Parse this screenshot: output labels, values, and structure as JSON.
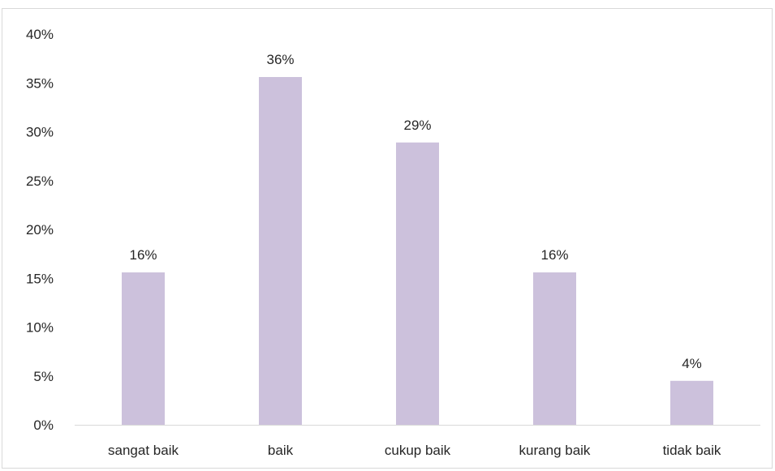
{
  "chart_data": {
    "type": "bar",
    "categories": [
      "sangat baik",
      "baik",
      "cukup baik",
      "kurang baik",
      "tidak baik"
    ],
    "values": [
      16,
      36,
      29,
      16,
      4
    ],
    "value_labels": [
      "16%",
      "36%",
      "29%",
      "16%",
      "4%"
    ],
    "plotted_values": [
      15.6,
      35.6,
      28.9,
      15.6,
      4.5
    ],
    "title": "",
    "xlabel": "",
    "ylabel": "",
    "ylim": [
      0,
      40
    ],
    "yticks": [
      0,
      5,
      10,
      15,
      20,
      25,
      30,
      35,
      40
    ],
    "ytick_labels": [
      "0%",
      "5%",
      "10%",
      "15%",
      "20%",
      "25%",
      "30%",
      "35%",
      "40%"
    ],
    "grid": false,
    "legend": "none",
    "bar_color": "#ccc1dc",
    "axis_color": "#d9d9d9",
    "text_color": "#262626"
  }
}
